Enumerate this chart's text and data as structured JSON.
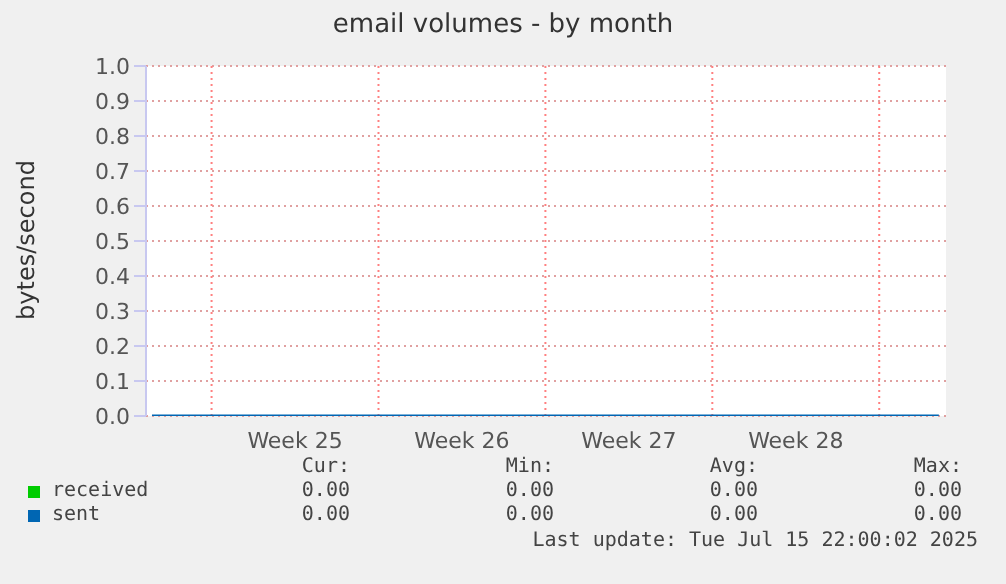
{
  "chart_data": {
    "type": "line",
    "title": "email volumes - by month",
    "ylabel": "bytes/second",
    "categories": [
      null,
      null,
      null,
      null,
      null,
      null,
      "Week 25",
      null,
      null,
      null,
      null,
      null,
      null,
      "Week 26",
      null,
      null,
      null,
      null,
      null,
      null,
      "Week 27",
      null,
      null,
      null,
      null,
      null,
      null,
      "Week 28",
      null,
      null,
      null,
      null,
      null,
      null
    ],
    "series": [
      {
        "name": "received",
        "color": "#00cc00",
        "values": [
          null,
          null,
          null,
          null,
          null,
          null,
          null,
          null,
          null,
          null,
          null,
          null,
          null,
          null,
          null,
          null,
          null,
          null,
          null,
          null,
          null,
          null,
          null,
          null,
          null,
          null,
          null,
          null,
          null,
          null,
          null,
          null,
          null,
          null
        ]
      },
      {
        "name": "sent",
        "color": "#0066b3",
        "values": [
          0,
          0,
          0,
          0,
          0,
          0,
          0,
          0,
          0,
          0,
          0,
          0,
          0,
          0,
          0,
          0,
          0,
          0,
          0,
          0,
          0,
          0,
          0,
          0,
          0,
          0,
          0,
          0,
          0,
          0,
          0,
          0,
          0,
          0
        ]
      }
    ],
    "ylim": [
      0,
      1
    ],
    "yticks": [
      {
        "value": 0,
        "label": "0.0"
      },
      {
        "value": 0.1,
        "label": "0.1"
      },
      {
        "value": 0.2,
        "label": "0.2"
      },
      {
        "value": 0.3,
        "label": "0.3"
      },
      {
        "value": 0.4,
        "label": "0.4"
      },
      {
        "value": 0.5,
        "label": "0.5"
      },
      {
        "value": 0.6,
        "label": "0.6"
      },
      {
        "value": 0.7,
        "label": "0.7"
      },
      {
        "value": 0.8,
        "label": "0.8"
      },
      {
        "value": 0.9,
        "label": "0.9"
      },
      {
        "value": 1,
        "label": "1.0"
      }
    ],
    "grid": "y",
    "legend": "bottom left",
    "marker": "none",
    "line_style": "solid",
    "annotations": [
      "Cur:",
      "Min:",
      "Avg:",
      "Max:",
      "0.00",
      "0.00",
      "0.00",
      "0.00",
      "0.00",
      "0.00",
      "0.00",
      "0.00",
      "Last update: Tue Jul 15 22:00:02 2025"
    ]
  }
}
